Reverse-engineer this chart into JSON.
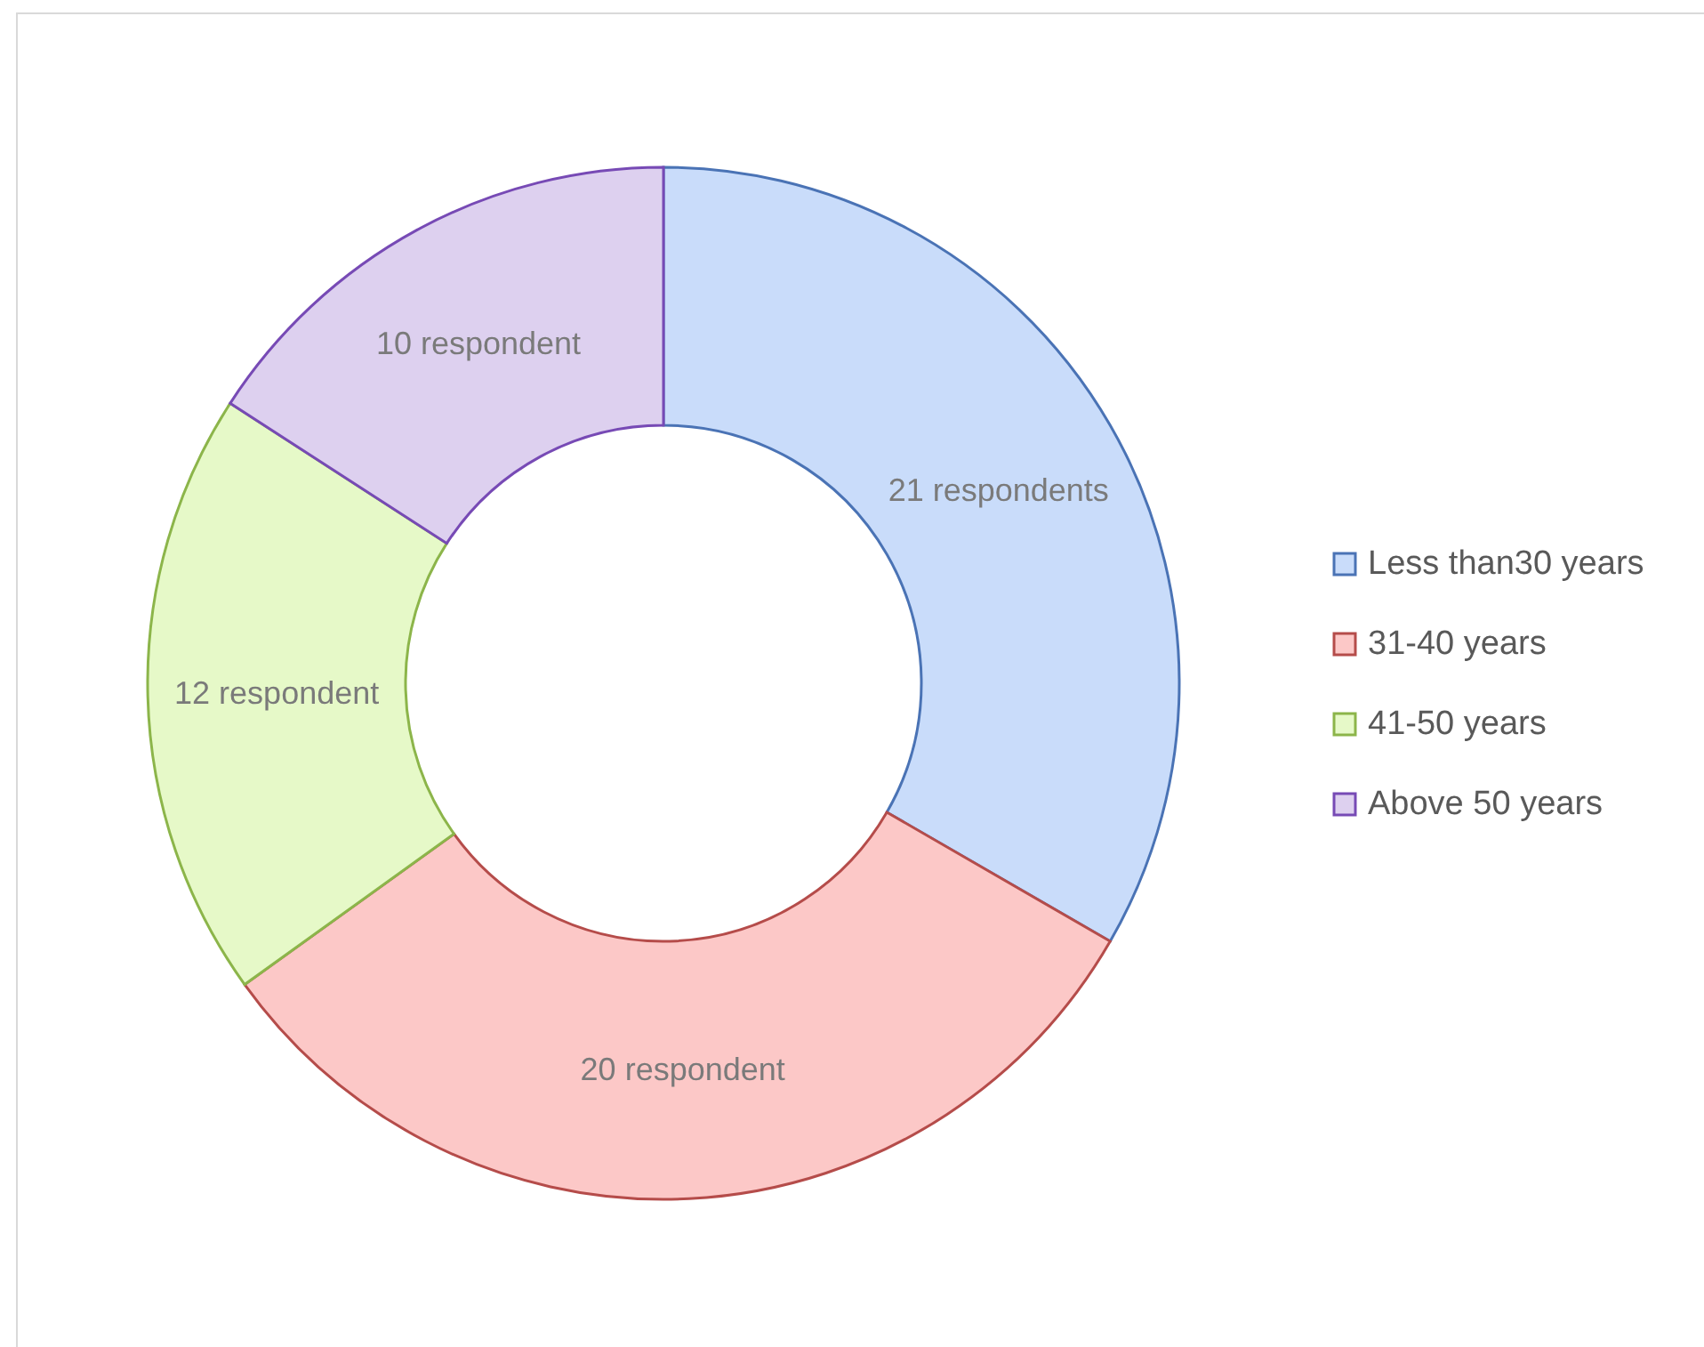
{
  "chart_data": {
    "type": "donut",
    "categories": [
      "Less than30 years",
      "31-40 years",
      "41-50 years",
      "Above 50 years"
    ],
    "values": [
      21,
      20,
      12,
      10
    ],
    "value_labels": [
      "21 respondents",
      "20 respondent",
      "12 respondent",
      "10 respondent"
    ],
    "colors": [
      "#c9dcfa",
      "#fcc8c7",
      "#e6f9c8",
      "#ddd0ef"
    ],
    "legend": "right"
  }
}
